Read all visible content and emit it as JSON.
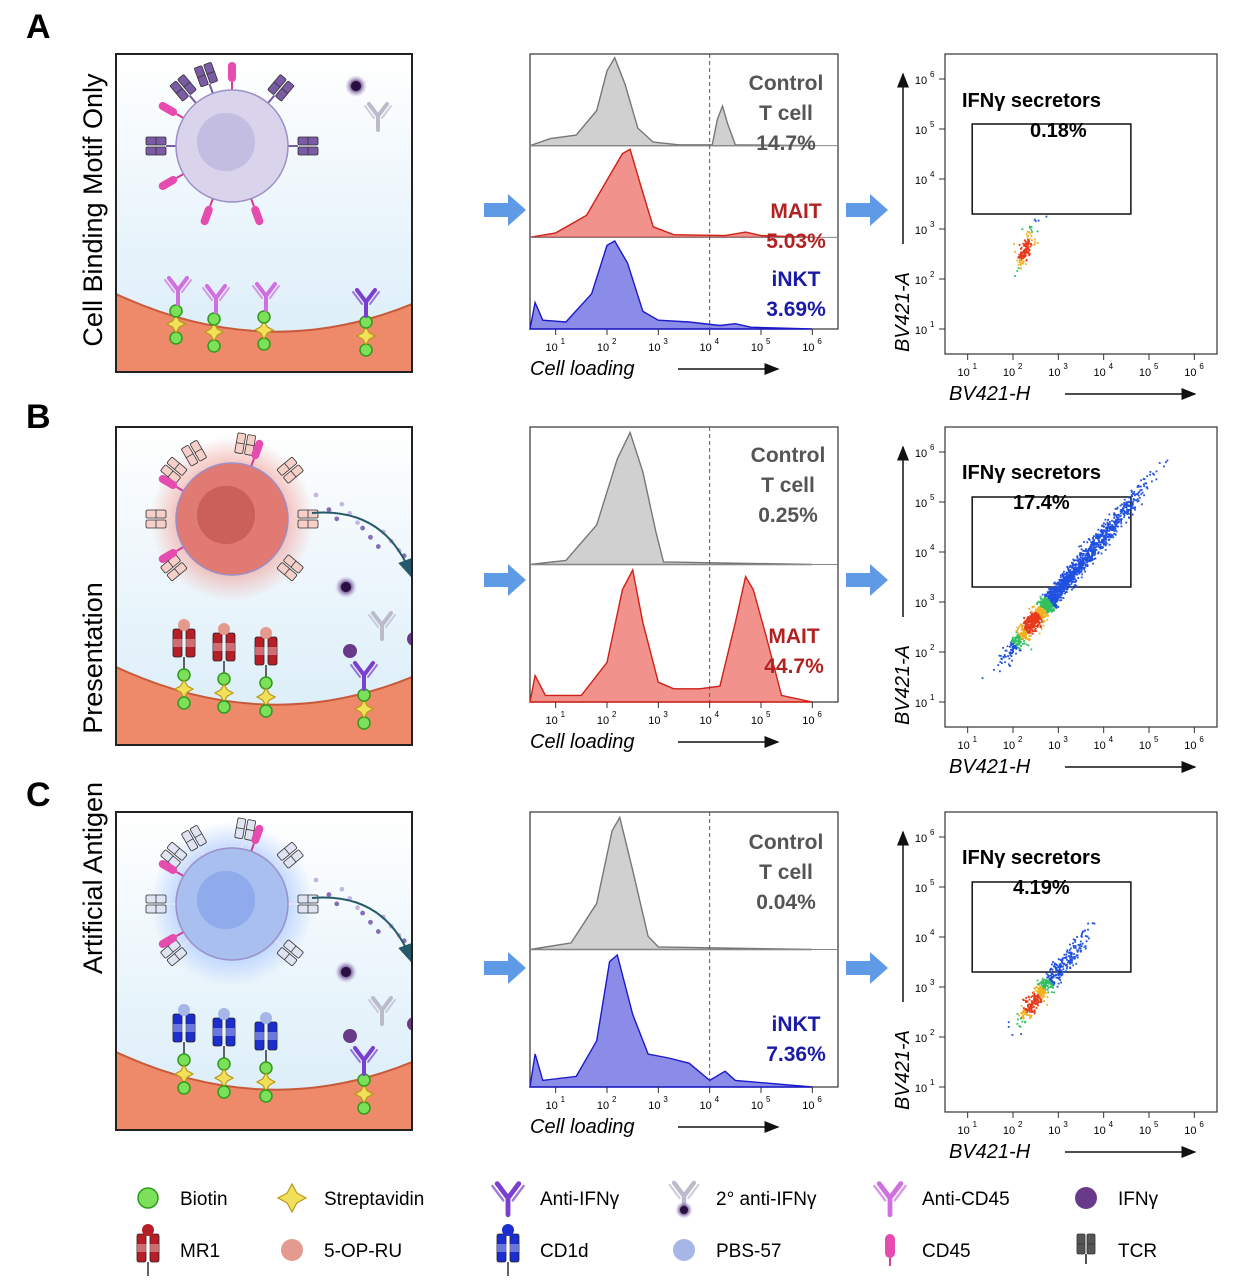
{
  "panels": [
    {
      "letter": "A",
      "stats": [
        {
          "label1": "Control",
          "label2": "T cell",
          "value": "14.7%",
          "color": "#555555"
        },
        {
          "label1": "MAIT",
          "label2": "",
          "value": "5.03%",
          "color": "#b22222"
        },
        {
          "label1": "iNKT",
          "label2": "",
          "value": "3.69%",
          "color": "#1a1aa8"
        }
      ],
      "gate_title": "IFNγ secretors",
      "gate_value": "0.18%"
    },
    {
      "letter": "B",
      "stats": [
        {
          "label1": "Control",
          "label2": "T cell",
          "value": "0.25%",
          "color": "#555555"
        },
        {
          "label1": "MAIT",
          "label2": "",
          "value": "44.7%",
          "color": "#b22222"
        }
      ],
      "gate_title": "IFNγ secretors",
      "gate_value": "17.4%"
    },
    {
      "letter": "C",
      "stats": [
        {
          "label1": "Control",
          "label2": "T cell",
          "value": "0.04%",
          "color": "#555555"
        },
        {
          "label1": "iNKT",
          "label2": "",
          "value": "7.36%",
          "color": "#1a1aa8"
        }
      ],
      "gate_title": "IFNγ secretors",
      "gate_value": "4.19%"
    }
  ],
  "row_labels": [
    "Cell Binding Motif Only",
    "Presentation",
    "Artificial Antigen"
  ],
  "hist_xlabel": "Cell loading",
  "scatter_xlabel": "BV421-H",
  "scatter_ylabel": "BV421-A",
  "ticks": [
    "1",
    "2",
    "3",
    "4",
    "5",
    "6"
  ],
  "legend": [
    {
      "label": "Biotin",
      "icon": "biotin-icon"
    },
    {
      "label": "Streptavidin",
      "icon": "streptavidin-icon"
    },
    {
      "label": "Anti-IFNγ",
      "icon": "anti-ifng-icon"
    },
    {
      "label": "2° anti-IFNγ",
      "icon": "secondary-anti-ifng-icon"
    },
    {
      "label": "Anti-CD45",
      "icon": "anti-cd45-icon"
    },
    {
      "label": "IFNγ",
      "icon": "ifng-icon"
    },
    {
      "label": "MR1",
      "icon": "mr1-icon"
    },
    {
      "label": "5-OP-RU",
      "icon": "5-op-ru-icon"
    },
    {
      "label": "CD1d",
      "icon": "cd1d-icon"
    },
    {
      "label": "PBS-57",
      "icon": "pbs-57-icon"
    },
    {
      "label": "CD45",
      "icon": "cd45-icon"
    },
    {
      "label": "TCR",
      "icon": "tcr-icon"
    }
  ],
  "colors": {
    "control": "#a9a9a9",
    "mait": "#e8392f",
    "inkt": "#2b2bd6",
    "cell_a": "#d9d4ec",
    "cell_b": "#e07a72",
    "cell_c": "#a9bff0",
    "substrate": "#ee8a6a",
    "biotin": "#7de05a",
    "streptavidin": "#f3e05a",
    "arrow": "#5f9ae6"
  }
}
